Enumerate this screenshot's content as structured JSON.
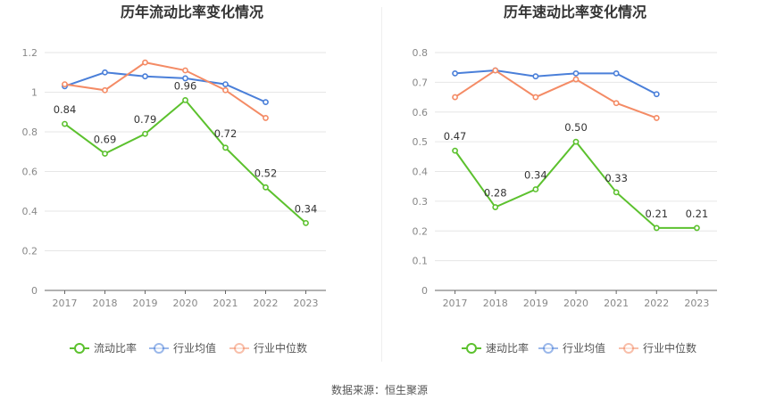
{
  "source_text": "数据来源：恒生聚源",
  "chart_data": [
    {
      "type": "line",
      "title": "历年流动比率变化情况",
      "xlabel": "",
      "ylabel": "",
      "categories": [
        "2017",
        "2018",
        "2019",
        "2020",
        "2021",
        "2022",
        "2023"
      ],
      "ylim": [
        0,
        1.2
      ],
      "yticks": [
        0,
        0.2,
        0.4,
        0.6,
        0.8,
        1,
        1.2
      ],
      "ytick_labels": [
        "0",
        "0.2",
        "0.4",
        "0.6",
        "0.8",
        "1",
        "1.2"
      ],
      "grid": true,
      "legend_position": "bottom",
      "series": [
        {
          "name": "流动比率",
          "color": "#5cc12e",
          "values": [
            0.84,
            0.69,
            0.79,
            0.96,
            0.72,
            0.52,
            0.34
          ],
          "labels": [
            "0.84",
            "0.69",
            "0.79",
            "0.96",
            "0.72",
            "0.52",
            "0.34"
          ]
        },
        {
          "name": "行业均值",
          "color": "#4a7fd9",
          "values": [
            1.03,
            1.1,
            1.08,
            1.07,
            1.04,
            0.95,
            null
          ]
        },
        {
          "name": "行业中位数",
          "color": "#f48b65",
          "values": [
            1.04,
            1.01,
            1.15,
            1.11,
            1.01,
            0.87,
            null
          ]
        }
      ]
    },
    {
      "type": "line",
      "title": "历年速动比率变化情况",
      "xlabel": "",
      "ylabel": "",
      "categories": [
        "2017",
        "2018",
        "2019",
        "2020",
        "2021",
        "2022",
        "2023"
      ],
      "ylim": [
        0,
        0.8
      ],
      "yticks": [
        0,
        0.1,
        0.2,
        0.3,
        0.4,
        0.5,
        0.6,
        0.7,
        0.8
      ],
      "ytick_labels": [
        "0",
        "0.1",
        "0.2",
        "0.3",
        "0.4",
        "0.5",
        "0.6",
        "0.7",
        "0.8"
      ],
      "grid": true,
      "legend_position": "bottom",
      "series": [
        {
          "name": "速动比率",
          "color": "#5cc12e",
          "values": [
            0.47,
            0.28,
            0.34,
            0.5,
            0.33,
            0.21,
            0.21
          ],
          "labels": [
            "0.47",
            "0.28",
            "0.34",
            "0.50",
            "0.33",
            "0.21",
            "0.21"
          ]
        },
        {
          "name": "行业均值",
          "color": "#4a7fd9",
          "values": [
            0.73,
            0.74,
            0.72,
            0.73,
            0.73,
            0.66,
            null
          ]
        },
        {
          "name": "行业中位数",
          "color": "#f48b65",
          "values": [
            0.65,
            0.74,
            0.65,
            0.71,
            0.63,
            0.58,
            null
          ]
        }
      ]
    }
  ]
}
